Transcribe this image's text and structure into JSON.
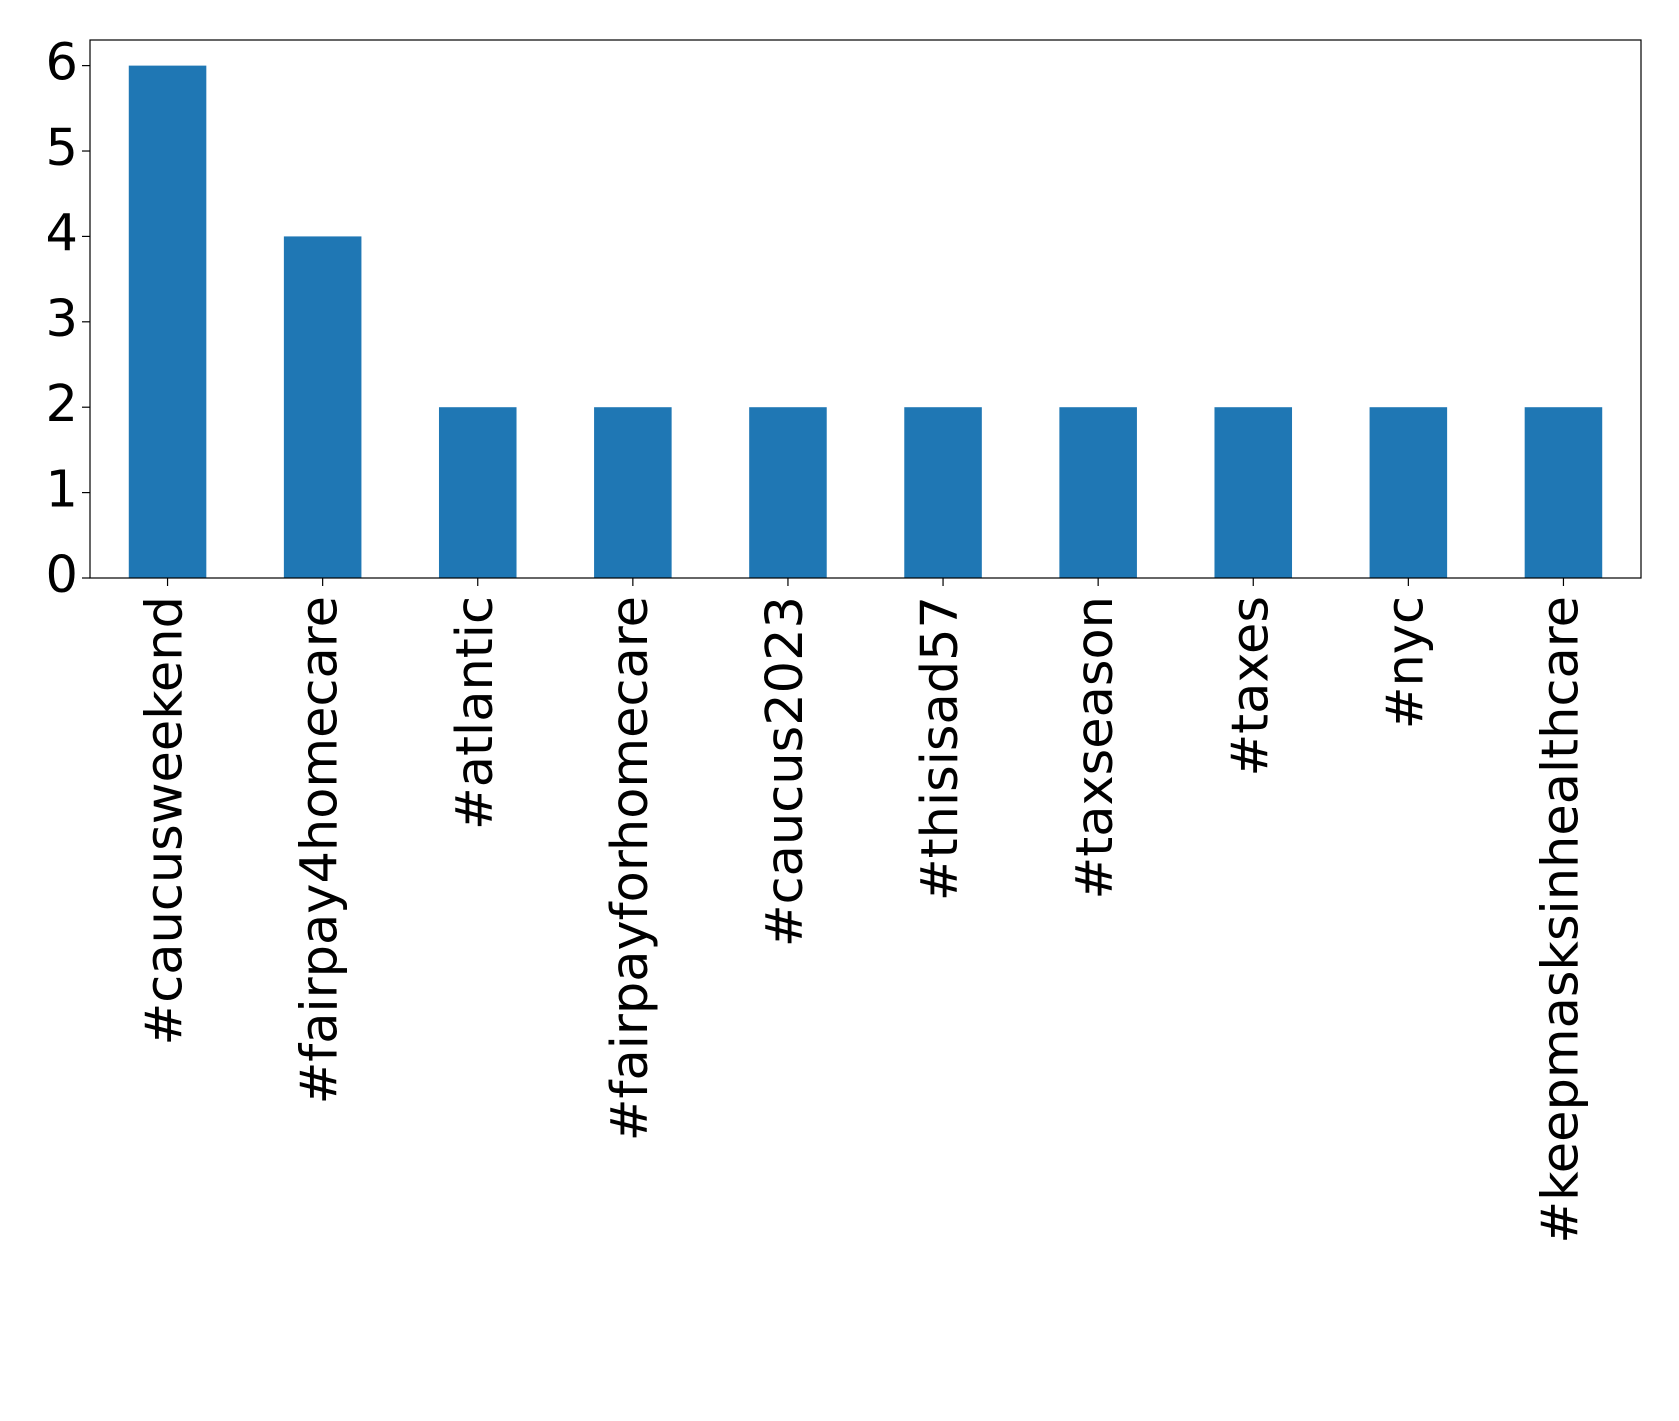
{
  "chart_data": {
    "type": "bar",
    "categories": [
      "#caucusweekend",
      "#fairpay4homecare",
      "#atlantic",
      "#fairpayforhomecare",
      "#caucus2023",
      "#thisisad57",
      "#taxseason",
      "#taxes",
      "#nyc",
      "#keepmasksinhealthcare"
    ],
    "values": [
      6,
      4,
      2,
      2,
      2,
      2,
      2,
      2,
      2,
      2
    ],
    "color": "#1f77b4",
    "ylim": [
      0,
      6.3
    ],
    "yticks": [
      0,
      1,
      2,
      3,
      4,
      5,
      6
    ],
    "grid": false
  }
}
